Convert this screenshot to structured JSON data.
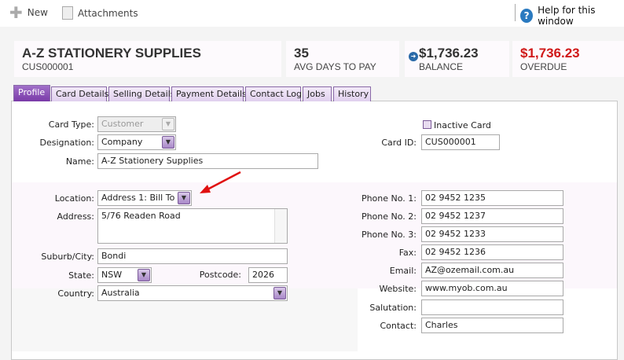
{
  "toolbar": {
    "new": "New",
    "attachments": "Attachments",
    "help": "Help for this window"
  },
  "header": {
    "name": "A-Z STATIONERY SUPPLIES",
    "card_id": "CUS000001",
    "avg_days": "35",
    "avg_days_label": "AVG DAYS TO PAY",
    "balance": "$1,736.23",
    "balance_label": "BALANCE",
    "overdue": "$1,736.23",
    "overdue_label": "OVERDUE",
    "overdue_color": "#d01818"
  },
  "tabs": [
    "Profile",
    "Card Details",
    "Selling Details",
    "Payment Details",
    "Contact Log",
    "Jobs",
    "History"
  ],
  "form": {
    "card_type_label": "Card Type:",
    "card_type": "Customer",
    "designation_label": "Designation:",
    "designation": "Company",
    "name_label": "Name:",
    "name": "A-Z Stationery Supplies",
    "inactive_label": "Inactive Card",
    "card_id_label": "Card ID:",
    "card_id": "CUS000001",
    "location_label": "Location:",
    "location": "Address 1: Bill To",
    "address_label": "Address:",
    "address": "5/76 Readen Road",
    "suburb_label": "Suburb/City:",
    "suburb": "Bondi",
    "state_label": "State:",
    "state": "NSW",
    "postcode_label": "Postcode:",
    "postcode": "2026",
    "country_label": "Country:",
    "country": "Australia",
    "phone1_label": "Phone No. 1:",
    "phone1": "02 9452 1235",
    "phone2_label": "Phone No. 2:",
    "phone2": "02 9452 1237",
    "phone3_label": "Phone No. 3:",
    "phone3": "02 9452 1233",
    "fax_label": "Fax:",
    "fax": "02 9452 1236",
    "email_label": "Email:",
    "email": "AZ@ozemail.com.au",
    "website_label": "Website:",
    "website": "www.myob.com.au",
    "salutation_label": "Salutation:",
    "salutation": "",
    "contact_label": "Contact:",
    "contact": "Charles"
  }
}
